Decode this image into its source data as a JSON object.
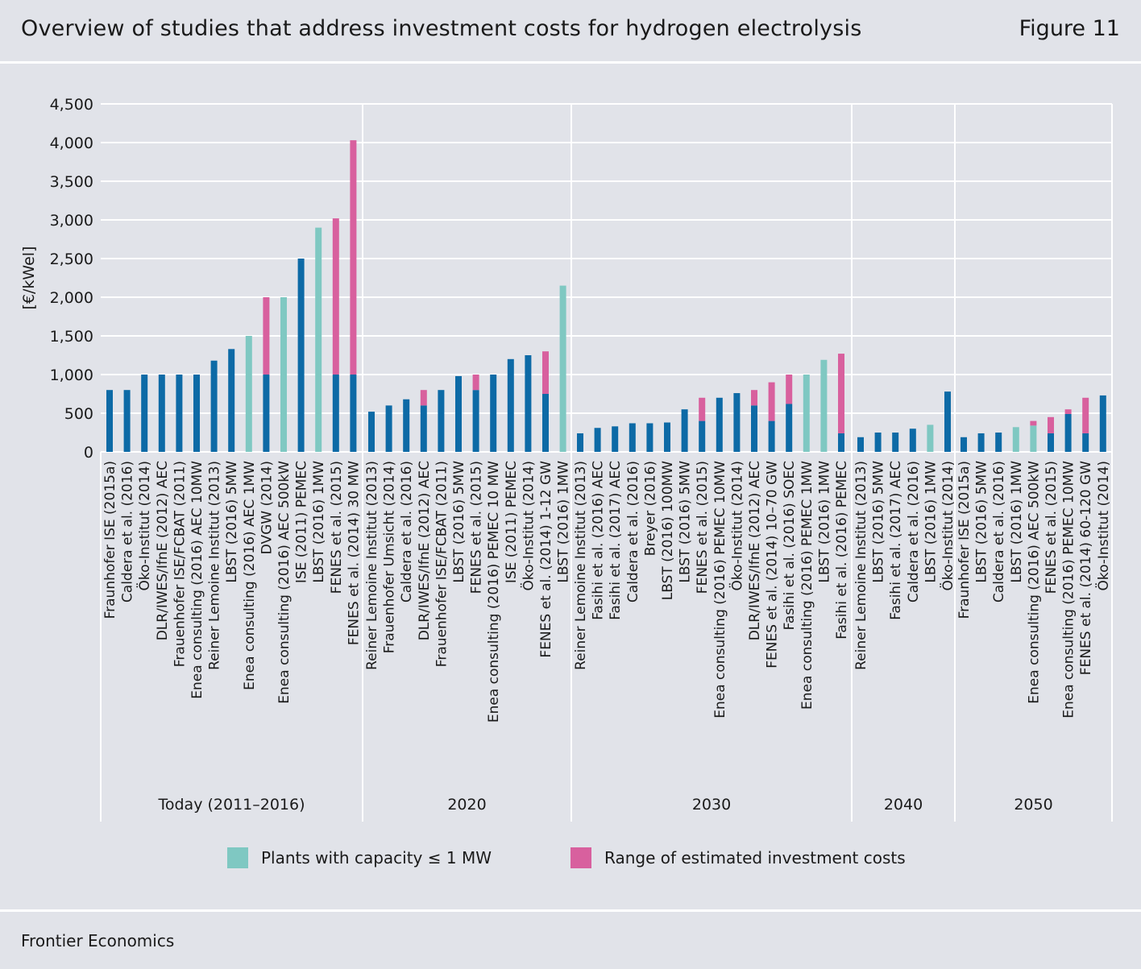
{
  "header": {
    "title": "Overview of studies that address investment costs for hydrogen electrolysis",
    "figure": "Figure 11"
  },
  "footer": {
    "source": "Frontier Economics"
  },
  "colors": {
    "blue": "#0d6aa6",
    "teal": "#7fc8c2",
    "pink": "#d8609e",
    "grid": "#ffffff",
    "background": "#e1e3e9"
  },
  "legend": [
    {
      "label": "Plants with capacity ≤ 1 MW",
      "color": "#7fc8c2"
    },
    {
      "label": "Range of estimated investment costs",
      "color": "#d8609e"
    }
  ],
  "chart_data": {
    "type": "bar",
    "ylabel": "[€/kWel]",
    "ylim": [
      0,
      4500
    ],
    "yticks": [
      0,
      500,
      1000,
      1500,
      2000,
      2500,
      3000,
      3500,
      4000,
      4500
    ],
    "ytick_labels": [
      "0",
      "500",
      "1,000",
      "1,500",
      "2,000",
      "2,500",
      "3,000",
      "3,500",
      "4,000",
      "4,500"
    ],
    "grid": true,
    "groups": [
      {
        "name": "Today (2011–2016)",
        "bars": [
          {
            "label": "Fraunhofer ISE (2015a)",
            "base": 800,
            "top": 800,
            "small": false
          },
          {
            "label": "Caldera et al. (2016)",
            "base": 800,
            "top": 800,
            "small": false
          },
          {
            "label": "Öko-Institut (2014)",
            "base": 1000,
            "top": 1000,
            "small": false
          },
          {
            "label": "DLR/IWES/IfnE (2012) AEC",
            "base": 1000,
            "top": 1000,
            "small": false
          },
          {
            "label": "Frauenhofer ISE/FCBAT (2011)",
            "base": 1000,
            "top": 1000,
            "small": false
          },
          {
            "label": "Enea consulting (2016) AEC 10MW",
            "base": 1000,
            "top": 1000,
            "small": false
          },
          {
            "label": "Reiner Lemoine Institut (2013)",
            "base": 1180,
            "top": 1180,
            "small": false
          },
          {
            "label": "LBST (2016) 5MW",
            "base": 1330,
            "top": 1330,
            "small": false
          },
          {
            "label": "Enea consulting (2016) AEC 1MW",
            "base": 1500,
            "top": 1500,
            "small": true
          },
          {
            "label": "DVGW (2014)",
            "base": 1000,
            "top": 2000,
            "small": false
          },
          {
            "label": "Enea consulting (2016) AEC 500kW",
            "base": 2000,
            "top": 2000,
            "small": true
          },
          {
            "label": "ISE (2011) PEMEC",
            "base": 2500,
            "top": 2500,
            "small": false
          },
          {
            "label": "LBST (2016) 1MW",
            "base": 2900,
            "top": 2900,
            "small": true
          },
          {
            "label": "FENES et al. (2015)",
            "base": 1000,
            "top": 3020,
            "small": false
          },
          {
            "label": "FENES et al. (2014) 30 MW",
            "base": 1000,
            "top": 4030,
            "small": false
          }
        ]
      },
      {
        "name": "2020",
        "bars": [
          {
            "label": "Reiner Lemoine Institut (2013)",
            "base": 520,
            "top": 520,
            "small": false
          },
          {
            "label": "Frauenhofer Umsicht (2014)",
            "base": 600,
            "top": 600,
            "small": false
          },
          {
            "label": "Caldera et al. (2016)",
            "base": 680,
            "top": 680,
            "small": false
          },
          {
            "label": "DLR/IWES/IfnE (2012) AEC",
            "base": 600,
            "top": 800,
            "small": false
          },
          {
            "label": "Frauenhofer ISE/FCBAT (2011)",
            "base": 800,
            "top": 800,
            "small": false
          },
          {
            "label": "LBST (2016) 5MW",
            "base": 980,
            "top": 980,
            "small": false
          },
          {
            "label": "FENES et al. (2015)",
            "base": 800,
            "top": 1000,
            "small": false
          },
          {
            "label": "Enea consulting (2016) PEMEC 10 MW",
            "base": 1000,
            "top": 1000,
            "small": false
          },
          {
            "label": "ISE (2011) PEMEC",
            "base": 1200,
            "top": 1200,
            "small": false
          },
          {
            "label": "Öko-Institut (2014)",
            "base": 1250,
            "top": 1250,
            "small": false
          },
          {
            "label": "FENES et al. (2014) 1-12 GW",
            "base": 750,
            "top": 1300,
            "small": false
          },
          {
            "label": "LBST (2016) 1MW",
            "base": 2150,
            "top": 2150,
            "small": true
          }
        ]
      },
      {
        "name": "2030",
        "bars": [
          {
            "label": "Reiner Lemoine Institut (2013)",
            "base": 240,
            "top": 240,
            "small": false
          },
          {
            "label": "Fasihi et al. (2016) AEC",
            "base": 310,
            "top": 310,
            "small": false
          },
          {
            "label": "Fasihi et al. (2017) AEC",
            "base": 330,
            "top": 330,
            "small": false
          },
          {
            "label": "Caldera et al. (2016)",
            "base": 370,
            "top": 370,
            "small": false
          },
          {
            "label": "Breyer (2016)",
            "base": 370,
            "top": 370,
            "small": false
          },
          {
            "label": "LBST (2016) 100MW",
            "base": 380,
            "top": 380,
            "small": false
          },
          {
            "label": "LBST (2016) 5MW",
            "base": 550,
            "top": 550,
            "small": false
          },
          {
            "label": "FENES et al. (2015)",
            "base": 400,
            "top": 700,
            "small": false
          },
          {
            "label": "Enea consulting (2016) PEMEC 10MW",
            "base": 700,
            "top": 700,
            "small": false
          },
          {
            "label": "Öko-Institut (2014)",
            "base": 760,
            "top": 760,
            "small": false
          },
          {
            "label": "DLR/IWES/IfnE (2012) AEC",
            "base": 600,
            "top": 800,
            "small": false
          },
          {
            "label": "FENES et al. (2014) 10–70 GW",
            "base": 400,
            "top": 900,
            "small": false
          },
          {
            "label": "Fasihi et al. (2016) SOEC",
            "base": 620,
            "top": 1000,
            "small": false
          },
          {
            "label": "Enea consulting (2016) PEMEC 1MW",
            "base": 1000,
            "top": 1000,
            "small": true
          },
          {
            "label": "LBST (2016) 1MW",
            "base": 1190,
            "top": 1190,
            "small": true
          },
          {
            "label": "Fasihi et al. (2016) PEMEC",
            "base": 240,
            "top": 1270,
            "small": false
          }
        ]
      },
      {
        "name": "2040",
        "bars": [
          {
            "label": "Reiner Lemoine Institut (2013)",
            "base": 190,
            "top": 190,
            "small": false
          },
          {
            "label": "LBST (2016) 5MW",
            "base": 250,
            "top": 250,
            "small": false
          },
          {
            "label": "Fasihi et al. (2017) AEC",
            "base": 250,
            "top": 250,
            "small": false
          },
          {
            "label": "Caldera et al. (2016)",
            "base": 300,
            "top": 300,
            "small": false
          },
          {
            "label": "LBST (2016) 1MW",
            "base": 350,
            "top": 350,
            "small": true
          },
          {
            "label": "Öko-Institut (2014)",
            "base": 780,
            "top": 780,
            "small": false
          }
        ]
      },
      {
        "name": "2050",
        "bars": [
          {
            "label": "Fraunhofer ISE (2015a)",
            "base": 190,
            "top": 190,
            "small": false
          },
          {
            "label": "LBST (2016) 5MW",
            "base": 240,
            "top": 240,
            "small": false
          },
          {
            "label": "Caldera et al. (2016)",
            "base": 250,
            "top": 250,
            "small": false
          },
          {
            "label": "LBST (2016) 1MW",
            "base": 320,
            "top": 320,
            "small": true
          },
          {
            "label": "Enea consulting (2016) AEC 500kW",
            "base": 340,
            "top": 400,
            "small": true
          },
          {
            "label": "FENES et al. (2015)",
            "base": 240,
            "top": 450,
            "small": false
          },
          {
            "label": "Enea consulting (2016) PEMEC 10MW",
            "base": 490,
            "top": 550,
            "small": false
          },
          {
            "label": "FENES et al. (2014) 60-120 GW",
            "base": 240,
            "top": 700,
            "small": false
          },
          {
            "label": "Öko-Institut (2014)",
            "base": 730,
            "top": 730,
            "small": false
          }
        ]
      }
    ]
  }
}
